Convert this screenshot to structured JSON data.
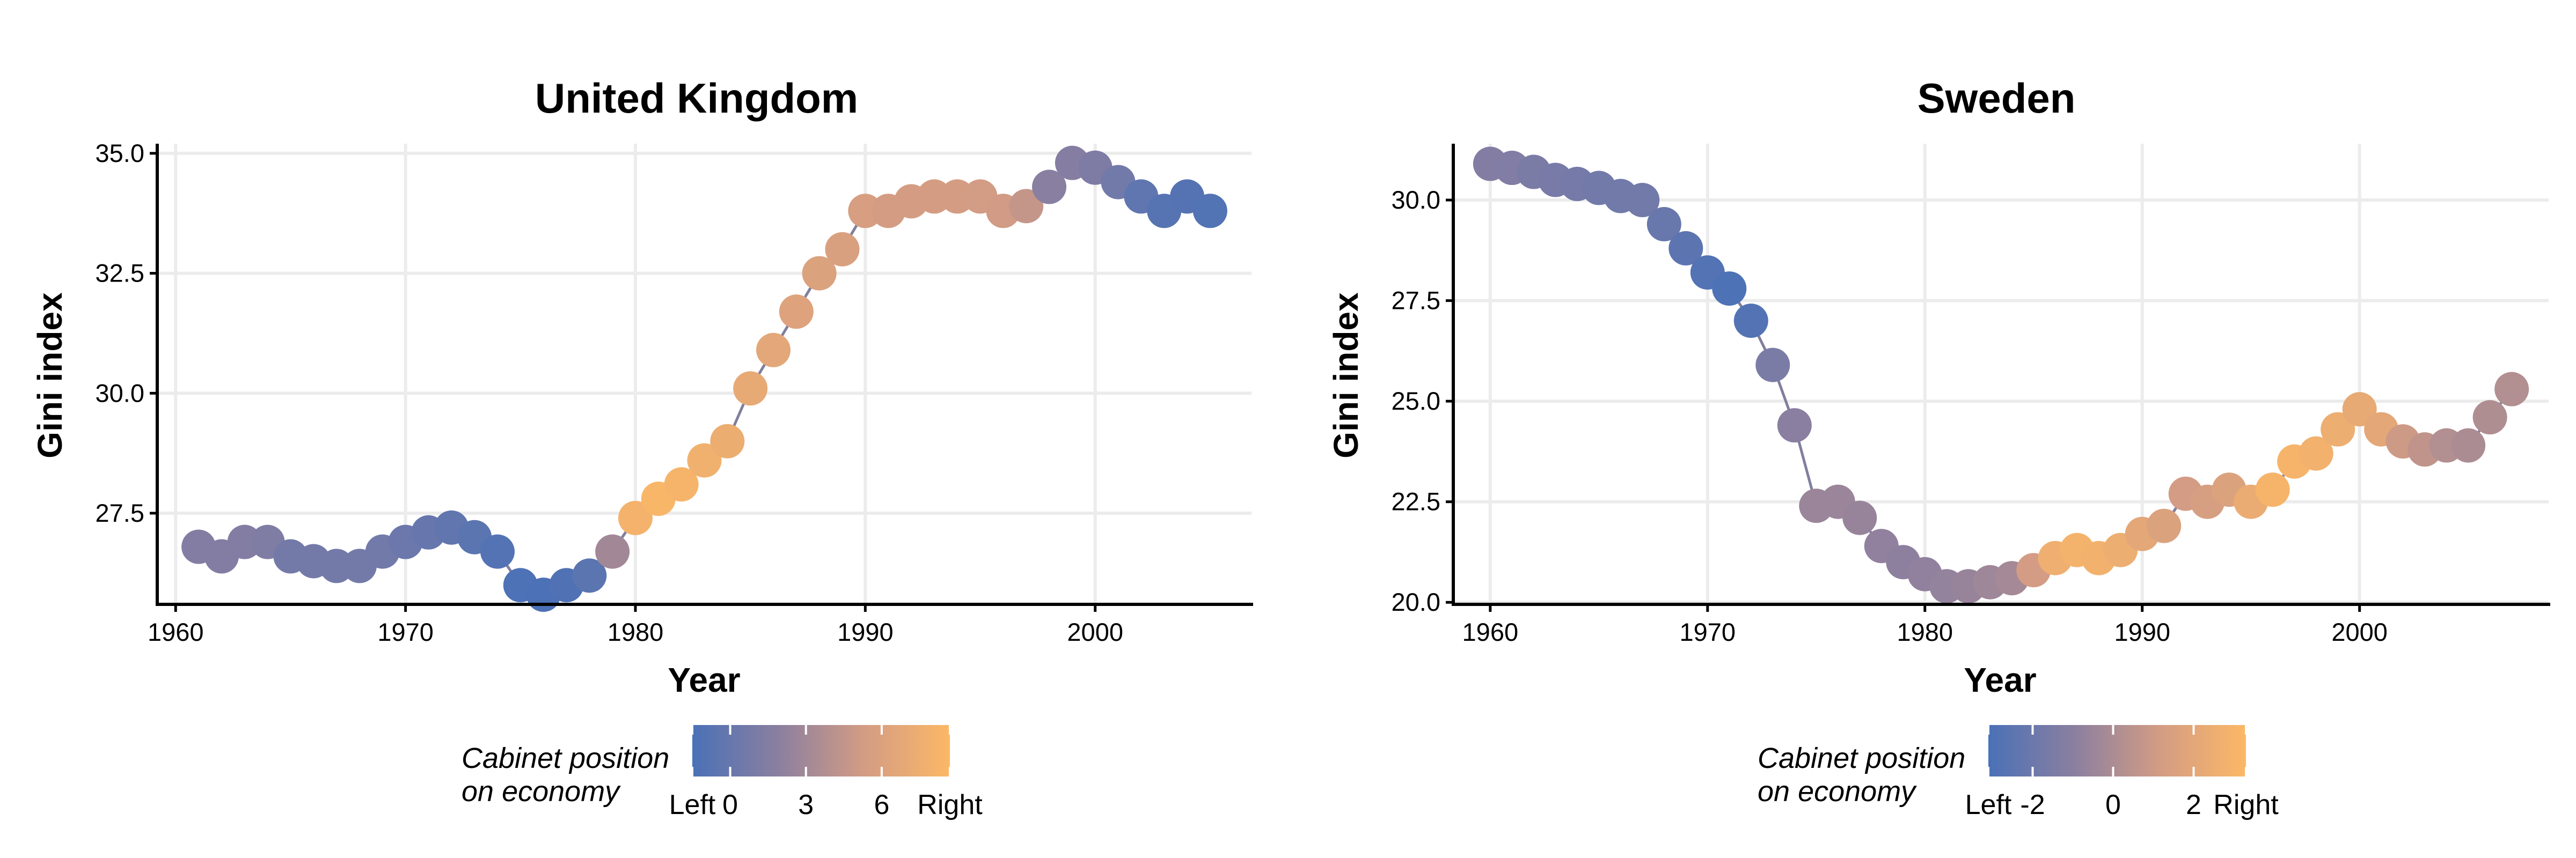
{
  "chart_data": [
    {
      "type": "scatter",
      "title": "United Kingdom",
      "xlabel": "Year",
      "ylabel": "Gini index",
      "xlim": [
        1959.2,
        2006.8
      ],
      "ylim": [
        25.6,
        35.2
      ],
      "xticks": [
        1960,
        1970,
        1980,
        1990,
        2000
      ],
      "xtick_labels": [
        "1960",
        "1970",
        "1980",
        "1990",
        "2000"
      ],
      "yticks": [
        27.5,
        30.0,
        32.5,
        35.0
      ],
      "ytick_labels": [
        "27.5",
        "30.0",
        "32.5",
        "35.0"
      ],
      "grid": true,
      "connected": true,
      "color_encoding": "Cabinet position on economy",
      "legend": {
        "title_lines": [
          "Cabinet position",
          "on economy"
        ],
        "placement": "bottom",
        "range": [
          -1.5,
          8.7
        ],
        "ticks": [
          -1.5,
          0,
          3,
          6,
          8.7
        ],
        "tick_labels": [
          "Left",
          "0",
          "3",
          "6",
          "Right"
        ],
        "colors": [
          "#4a71b7",
          "#8b7fa0",
          "#d39c84",
          "#fcb866"
        ]
      },
      "points": [
        {
          "x": 1961,
          "y": 26.8,
          "c": 1.5
        },
        {
          "x": 1962,
          "y": 26.6,
          "c": 1.5
        },
        {
          "x": 1963,
          "y": 26.9,
          "c": 1.5
        },
        {
          "x": 1964,
          "y": 26.9,
          "c": 1.3
        },
        {
          "x": 1965,
          "y": 26.6,
          "c": 0.7
        },
        {
          "x": 1966,
          "y": 26.5,
          "c": 0.7
        },
        {
          "x": 1967,
          "y": 26.4,
          "c": 0.7
        },
        {
          "x": 1968,
          "y": 26.4,
          "c": 0.7
        },
        {
          "x": 1969,
          "y": 26.7,
          "c": 0.6
        },
        {
          "x": 1970,
          "y": 26.9,
          "c": 0.3
        },
        {
          "x": 1971,
          "y": 27.1,
          "c": 0.0
        },
        {
          "x": 1972,
          "y": 27.2,
          "c": -0.3
        },
        {
          "x": 1973,
          "y": 27.0,
          "c": -0.6
        },
        {
          "x": 1974,
          "y": 26.7,
          "c": -1.0
        },
        {
          "x": 1975,
          "y": 26.0,
          "c": -1.3
        },
        {
          "x": 1976,
          "y": 25.8,
          "c": -1.4
        },
        {
          "x": 1977,
          "y": 26.0,
          "c": -1.2
        },
        {
          "x": 1978,
          "y": 26.2,
          "c": -0.6
        },
        {
          "x": 1979,
          "y": 26.7,
          "c": 3.0
        },
        {
          "x": 1980,
          "y": 27.4,
          "c": 8.0
        },
        {
          "x": 1981,
          "y": 27.8,
          "c": 8.4
        },
        {
          "x": 1982,
          "y": 28.1,
          "c": 8.2
        },
        {
          "x": 1983,
          "y": 28.6,
          "c": 7.8
        },
        {
          "x": 1984,
          "y": 29.0,
          "c": 7.4
        },
        {
          "x": 1985,
          "y": 30.1,
          "c": 7.0
        },
        {
          "x": 1986,
          "y": 30.9,
          "c": 6.6
        },
        {
          "x": 1987,
          "y": 31.7,
          "c": 6.2
        },
        {
          "x": 1988,
          "y": 32.5,
          "c": 6.0
        },
        {
          "x": 1989,
          "y": 33.0,
          "c": 5.8
        },
        {
          "x": 1990,
          "y": 33.8,
          "c": 5.6
        },
        {
          "x": 1991,
          "y": 33.8,
          "c": 5.4
        },
        {
          "x": 1992,
          "y": 34.0,
          "c": 5.4
        },
        {
          "x": 1993,
          "y": 34.1,
          "c": 5.4
        },
        {
          "x": 1994,
          "y": 34.1,
          "c": 5.4
        },
        {
          "x": 1995,
          "y": 34.1,
          "c": 5.3
        },
        {
          "x": 1996,
          "y": 33.8,
          "c": 5.2
        },
        {
          "x": 1997,
          "y": 33.9,
          "c": 4.6
        },
        {
          "x": 1998,
          "y": 34.3,
          "c": 1.8
        },
        {
          "x": 1999,
          "y": 34.8,
          "c": 1.6
        },
        {
          "x": 2000,
          "y": 34.7,
          "c": 1.2
        },
        {
          "x": 2001,
          "y": 34.4,
          "c": 0.6
        },
        {
          "x": 2002,
          "y": 34.1,
          "c": -0.4
        },
        {
          "x": 2003,
          "y": 33.8,
          "c": -0.8
        },
        {
          "x": 2004,
          "y": 34.1,
          "c": -0.9
        },
        {
          "x": 2005,
          "y": 33.8,
          "c": -1.1
        }
      ]
    },
    {
      "type": "scatter",
      "title": "Sweden",
      "xlabel": "Year",
      "ylabel": "Gini index",
      "xlim": [
        1958.3,
        2008.7
      ],
      "ylim": [
        19.95,
        31.4
      ],
      "xticks": [
        1960,
        1970,
        1980,
        1990,
        2000
      ],
      "xtick_labels": [
        "1960",
        "1970",
        "1980",
        "1990",
        "2000"
      ],
      "yticks": [
        20.0,
        22.5,
        25.0,
        27.5,
        30.0
      ],
      "ytick_labels": [
        "20.0",
        "22.5",
        "25.0",
        "27.5",
        "30.0"
      ],
      "grid": true,
      "connected": true,
      "color_encoding": "Cabinet position on economy",
      "legend": {
        "title_lines": [
          "Cabinet position",
          "on economy"
        ],
        "placement": "bottom",
        "range": [
          -3.1,
          3.3
        ],
        "ticks": [
          -3.1,
          -2,
          0,
          2,
          3.3
        ],
        "tick_labels": [
          "Left",
          "-2",
          "0",
          "2",
          "Right"
        ],
        "colors": [
          "#4a71b7",
          "#8b7fa0",
          "#d39c84",
          "#fcb866"
        ]
      },
      "points": [
        {
          "x": 1960,
          "y": 30.9,
          "c": -1.2
        },
        {
          "x": 1961,
          "y": 30.8,
          "c": -1.3
        },
        {
          "x": 1962,
          "y": 30.7,
          "c": -1.5
        },
        {
          "x": 1963,
          "y": 30.5,
          "c": -1.6
        },
        {
          "x": 1964,
          "y": 30.4,
          "c": -1.7
        },
        {
          "x": 1965,
          "y": 30.3,
          "c": -1.8
        },
        {
          "x": 1966,
          "y": 30.1,
          "c": -1.8
        },
        {
          "x": 1967,
          "y": 30.0,
          "c": -1.8
        },
        {
          "x": 1968,
          "y": 29.4,
          "c": -2.1
        },
        {
          "x": 1969,
          "y": 28.8,
          "c": -2.5
        },
        {
          "x": 1970,
          "y": 28.2,
          "c": -2.8
        },
        {
          "x": 1971,
          "y": 27.8,
          "c": -3.0
        },
        {
          "x": 1972,
          "y": 27.0,
          "c": -2.8
        },
        {
          "x": 1973,
          "y": 25.9,
          "c": -1.5
        },
        {
          "x": 1974,
          "y": 24.4,
          "c": -1.0
        },
        {
          "x": 1975,
          "y": 22.4,
          "c": -0.5
        },
        {
          "x": 1976,
          "y": 22.5,
          "c": -0.5
        },
        {
          "x": 1977,
          "y": 22.1,
          "c": -0.6
        },
        {
          "x": 1978,
          "y": 21.4,
          "c": -0.8
        },
        {
          "x": 1979,
          "y": 21.0,
          "c": -0.9
        },
        {
          "x": 1980,
          "y": 20.7,
          "c": -0.8
        },
        {
          "x": 1981,
          "y": 20.4,
          "c": -0.7
        },
        {
          "x": 1982,
          "y": 20.4,
          "c": -0.6
        },
        {
          "x": 1983,
          "y": 20.5,
          "c": -0.4
        },
        {
          "x": 1984,
          "y": 20.6,
          "c": -0.2
        },
        {
          "x": 1985,
          "y": 20.8,
          "c": 1.2
        },
        {
          "x": 1986,
          "y": 21.1,
          "c": 2.6
        },
        {
          "x": 1987,
          "y": 21.3,
          "c": 2.9
        },
        {
          "x": 1988,
          "y": 21.1,
          "c": 2.8
        },
        {
          "x": 1989,
          "y": 21.3,
          "c": 2.5
        },
        {
          "x": 1990,
          "y": 21.7,
          "c": 2.0
        },
        {
          "x": 1991,
          "y": 21.9,
          "c": 1.6
        },
        {
          "x": 1992,
          "y": 22.7,
          "c": 1.2
        },
        {
          "x": 1993,
          "y": 22.5,
          "c": 1.4
        },
        {
          "x": 1994,
          "y": 22.8,
          "c": 1.6
        },
        {
          "x": 1995,
          "y": 22.5,
          "c": 2.4
        },
        {
          "x": 1996,
          "y": 22.8,
          "c": 3.0
        },
        {
          "x": 1997,
          "y": 23.5,
          "c": 3.0
        },
        {
          "x": 1998,
          "y": 23.7,
          "c": 2.8
        },
        {
          "x": 1999,
          "y": 24.3,
          "c": 2.5
        },
        {
          "x": 2000,
          "y": 24.8,
          "c": 2.2
        },
        {
          "x": 2001,
          "y": 24.3,
          "c": 2.0
        },
        {
          "x": 2002,
          "y": 24.0,
          "c": 1.0
        },
        {
          "x": 2003,
          "y": 23.8,
          "c": 0.6
        },
        {
          "x": 2004,
          "y": 23.9,
          "c": 0.2
        },
        {
          "x": 2005,
          "y": 23.9,
          "c": 0.0
        },
        {
          "x": 2006,
          "y": 24.6,
          "c": 0.1
        },
        {
          "x": 2007,
          "y": 25.3,
          "c": 0.2
        }
      ]
    }
  ]
}
